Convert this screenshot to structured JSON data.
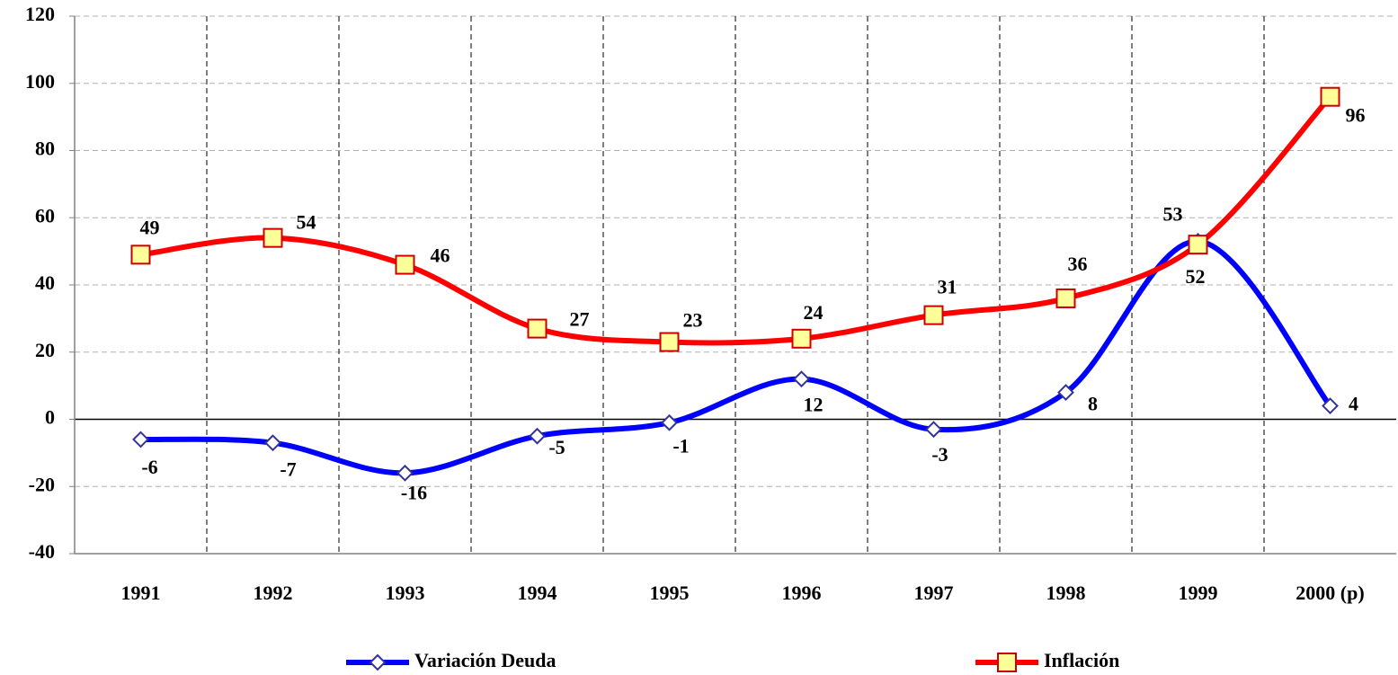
{
  "chart_data": {
    "type": "line",
    "categories": [
      "1991",
      "1992",
      "1993",
      "1994",
      "1995",
      "1996",
      "1997",
      "1998",
      "1999",
      "2000 (p)"
    ],
    "series": [
      {
        "name": "Variación Deuda",
        "color": "#0000ff",
        "marker_fill": "#ffffff",
        "marker_stroke": "#333399",
        "marker": "diamond",
        "values": [
          -6,
          -7,
          -16,
          -5,
          -1,
          12,
          -3,
          8,
          53,
          4
        ]
      },
      {
        "name": "Inflación",
        "color": "#ff0000",
        "marker_fill": "#ffff99",
        "marker_stroke": "#cc0000",
        "marker": "square",
        "values": [
          49,
          54,
          46,
          27,
          23,
          24,
          31,
          36,
          52,
          96
        ]
      }
    ],
    "ylim": [
      -40,
      120
    ],
    "yticks": [
      -40,
      -20,
      0,
      20,
      40,
      60,
      80,
      100,
      120
    ],
    "grid": true,
    "smooth": true,
    "legend": "bottom"
  }
}
